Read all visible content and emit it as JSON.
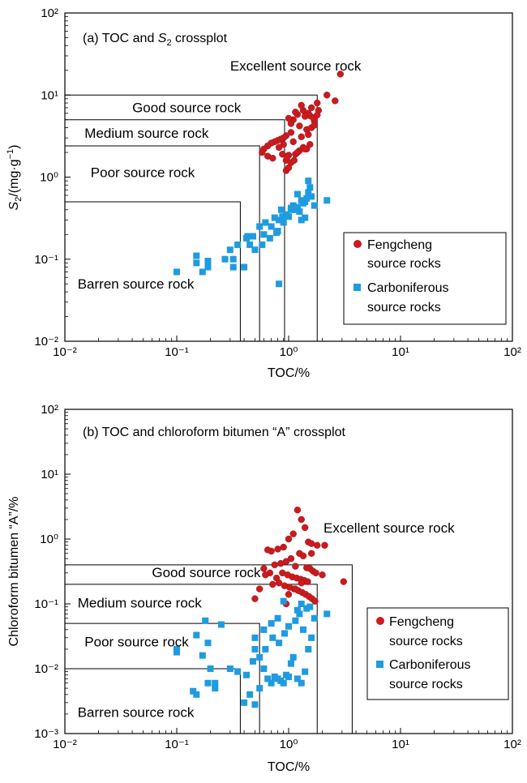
{
  "colors": {
    "fengcheng": "#cc1a1f",
    "carboniferous": "#1f9be0",
    "axis": "#000000"
  },
  "chart_data": [
    {
      "type": "scatter",
      "title": "(a) TOC and S2 crossplot",
      "title_parts": {
        "prefix": "(a) TOC and ",
        "var": "S",
        "sub": "2",
        "suffix": " crossplot"
      },
      "xlabel": "TOC/%",
      "ylabel": "S2/(mg·g−1)",
      "ylabel_parts": {
        "var": "S",
        "sub": "2",
        "unit": "/(mg·g",
        "sup": "−1",
        "close": ")"
      },
      "x_scale": "log",
      "y_scale": "log",
      "xlim": [
        0.01,
        100
      ],
      "ylim": [
        0.01,
        100
      ],
      "xticks": [
        0.01,
        0.1,
        1,
        10,
        100
      ],
      "yticks": [
        0.01,
        0.1,
        1,
        10,
        100
      ],
      "grid": false,
      "legend_position": "right-middle",
      "zones": [
        {
          "label": "Barren source rock",
          "toc_max": 0.37,
          "y_max": 0.5,
          "label_x": 0.013,
          "label_y": 0.044
        },
        {
          "label": "Poor source rock",
          "toc_max": 0.55,
          "y_max": 2.4,
          "label_x": 0.017,
          "label_y": 1.0
        },
        {
          "label": "Medium source rock",
          "toc_max": 0.92,
          "y_max": 5,
          "label_x": 0.015,
          "label_y": 3.0
        },
        {
          "label": "Good source rock",
          "toc_max": 1.8,
          "y_max": 10,
          "label_x": 0.04,
          "label_y": 6.2
        },
        {
          "label": "Excellent source rock",
          "toc_max": null,
          "y_max": null,
          "label_x": 0.3,
          "label_y": 20
        }
      ],
      "series": [
        {
          "name": "Fengcheng source rocks",
          "marker": "circle",
          "x": [
            2.9,
            2.2,
            2.6,
            1.8,
            1.85,
            1.6,
            1.5,
            1.4,
            1.35,
            1.3,
            1.2,
            1.15,
            1.1,
            1.05,
            1.0,
            1.7,
            1.55,
            1.25,
            1.45,
            1.65,
            1.8,
            1.05,
            0.95,
            0.9,
            0.85,
            0.8,
            0.75,
            0.7,
            0.65,
            0.6,
            0.58,
            0.65,
            0.72,
            0.95,
            1.05,
            1.15,
            1.25,
            1.35,
            1.55,
            1.45,
            1.2,
            1.0,
            0.9,
            1.1,
            0.82,
            0.88,
            1.3,
            1.5,
            1.6,
            1.7,
            0.95,
            1.0,
            1.4,
            0.97,
            1.12
          ],
          "y": [
            18,
            10,
            8.5,
            8,
            6.5,
            7,
            6,
            5.5,
            6.5,
            7.5,
            5.8,
            6.2,
            5,
            4.5,
            5.2,
            4.8,
            5.6,
            4.2,
            3.8,
            5.3,
            5.7,
            3.5,
            3.2,
            3.0,
            2.9,
            2.8,
            2.7,
            2.6,
            2.4,
            2.2,
            2.0,
            1.8,
            1.7,
            1.6,
            1.5,
            1.9,
            2.1,
            2.3,
            2.5,
            2.2,
            2.0,
            1.85,
            2.5,
            2.7,
            2.3,
            1.9,
            3.1,
            3.3,
            4.0,
            4.3,
            1.2,
            1.3,
            2.2,
            1.75,
            1.6
          ]
        },
        {
          "name": "Carboniferous source rocks",
          "marker": "square",
          "x": [
            0.1,
            0.15,
            0.15,
            0.19,
            0.17,
            0.19,
            0.27,
            0.3,
            0.32,
            0.32,
            0.35,
            0.4,
            0.42,
            0.43,
            0.45,
            0.5,
            0.55,
            0.6,
            0.62,
            0.7,
            0.75,
            0.8,
            0.82,
            0.82,
            0.9,
            0.95,
            1.0,
            1.05,
            1.1,
            1.15,
            1.2,
            1.25,
            1.3,
            1.35,
            1.4,
            1.45,
            1.5,
            1.55,
            1.6,
            1.7,
            2.2,
            1.5,
            1.4,
            1.2,
            1.05,
            0.88,
            0.78,
            0.68,
            0.58,
            0.48,
            0.86,
            1.3
          ],
          "y": [
            0.07,
            0.11,
            0.09,
            0.095,
            0.07,
            0.08,
            0.1,
            0.13,
            0.1,
            0.08,
            0.15,
            0.08,
            0.18,
            0.19,
            0.15,
            0.13,
            0.25,
            0.2,
            0.28,
            0.25,
            0.32,
            0.22,
            0.3,
            0.05,
            0.28,
            0.35,
            0.33,
            0.4,
            0.45,
            0.4,
            0.43,
            0.38,
            0.52,
            0.48,
            0.5,
            0.55,
            0.9,
            0.75,
            0.58,
            0.45,
            0.52,
            0.65,
            0.32,
            0.62,
            0.42,
            0.33,
            0.21,
            0.18,
            0.15,
            0.19,
            0.4,
            0.3
          ]
        }
      ]
    },
    {
      "type": "scatter",
      "title": "(b) TOC and chloroform bitumen “A” crossplot",
      "xlabel": "TOC/%",
      "ylabel": "Chloroform bitumen “A”/%",
      "x_scale": "log",
      "y_scale": "log",
      "xlim": [
        0.01,
        100
      ],
      "ylim": [
        0.001,
        100
      ],
      "xticks": [
        0.01,
        0.1,
        1,
        10,
        100
      ],
      "yticks": [
        0.001,
        0.01,
        0.1,
        1,
        10,
        100
      ],
      "grid": false,
      "legend_position": "right-middle",
      "zones": [
        {
          "label": "Barren source rock",
          "toc_max": 0.37,
          "y_max": 0.01,
          "label_x": 0.013,
          "label_y": 0.0018
        },
        {
          "label": "Poor source rock",
          "toc_max": 0.55,
          "y_max": 0.05,
          "label_x": 0.015,
          "label_y": 0.022
        },
        {
          "label": "Medium source rock",
          "toc_max": 1.8,
          "y_max": 0.2,
          "label_x": 0.013,
          "label_y": 0.088
        },
        {
          "label": "Good source rock",
          "toc_max": 3.7,
          "y_max": 0.4,
          "label_x": 0.06,
          "label_y": 0.26
        },
        {
          "label": "Excellent source rock",
          "toc_max": null,
          "y_max": null,
          "label_x": 2.05,
          "label_y": 1.25
        }
      ],
      "series": [
        {
          "name": "Fengcheng source rocks",
          "marker": "circle",
          "x": [
            1.2,
            1.3,
            1.4,
            1.1,
            1.0,
            1.5,
            1.6,
            1.8,
            2.1,
            0.9,
            0.8,
            0.7,
            0.65,
            1.25,
            1.35,
            1.05,
            0.95,
            0.85,
            0.75,
            1.15,
            1.45,
            1.55,
            1.65,
            1.75,
            2.0,
            0.88,
            0.98,
            1.08,
            1.18,
            1.28,
            1.38,
            1.48,
            0.78,
            0.68,
            0.6,
            0.72,
            0.92,
            1.02,
            1.12,
            1.22,
            1.32,
            1.42,
            1.52,
            1.62,
            1.72,
            3.1,
            0.82,
            0.62,
            1.6,
            0.5,
            0.55,
            1.0,
            1.3,
            1.15,
            0.95
          ],
          "y": [
            2.8,
            2.0,
            1.5,
            1.2,
            1.0,
            0.9,
            0.85,
            0.8,
            0.8,
            0.75,
            0.7,
            0.65,
            0.68,
            0.6,
            0.55,
            0.5,
            0.45,
            0.42,
            0.4,
            0.38,
            0.36,
            0.35,
            0.32,
            0.3,
            0.28,
            0.3,
            0.28,
            0.26,
            0.25,
            0.24,
            0.23,
            0.22,
            0.25,
            0.3,
            0.35,
            0.2,
            0.19,
            0.18,
            0.17,
            0.16,
            0.15,
            0.14,
            0.13,
            0.12,
            0.11,
            0.22,
            0.21,
            0.28,
            0.6,
            0.12,
            0.17,
            0.14,
            0.21,
            0.17,
            0.1
          ]
        },
        {
          "name": "Carboniferous source rocks",
          "marker": "square",
          "x": [
            0.15,
            0.18,
            0.25,
            0.1,
            0.1,
            0.19,
            0.17,
            0.2,
            0.22,
            0.3,
            0.15,
            0.14,
            0.19,
            0.22,
            0.35,
            0.4,
            0.45,
            0.42,
            0.5,
            0.55,
            0.6,
            0.65,
            0.7,
            0.75,
            0.8,
            0.85,
            0.9,
            0.95,
            1.0,
            1.05,
            1.1,
            1.2,
            1.3,
            1.4,
            1.5,
            1.6,
            1.7,
            2.2,
            1.2,
            1.3,
            0.9,
            0.8,
            0.7,
            0.6,
            0.5,
            0.5,
            0.55,
            0.48,
            0.62,
            0.72,
            0.82,
            0.92,
            1.0,
            1.15,
            1.25,
            1.35,
            1.45,
            1.55
          ],
          "y": [
            0.033,
            0.055,
            0.048,
            0.02,
            0.018,
            0.025,
            0.016,
            0.01,
            0.006,
            0.01,
            0.004,
            0.0045,
            0.006,
            0.005,
            0.009,
            0.003,
            0.004,
            0.008,
            0.0028,
            0.005,
            0.01,
            0.007,
            0.006,
            0.0075,
            0.007,
            0.0065,
            0.006,
            0.008,
            0.0075,
            0.012,
            0.015,
            0.007,
            0.006,
            0.009,
            0.02,
            0.03,
            0.06,
            0.07,
            0.08,
            0.1,
            0.11,
            0.06,
            0.05,
            0.04,
            0.03,
            0.02,
            0.015,
            0.013,
            0.02,
            0.03,
            0.025,
            0.035,
            0.045,
            0.055,
            0.07,
            0.04,
            0.085,
            0.09
          ]
        }
      ]
    }
  ],
  "legend": {
    "fengcheng_line1": "Fengcheng",
    "fengcheng_line2": "source rocks",
    "carboniferous_line1": "Carboniferous",
    "carboniferous_line2": "source rocks"
  }
}
